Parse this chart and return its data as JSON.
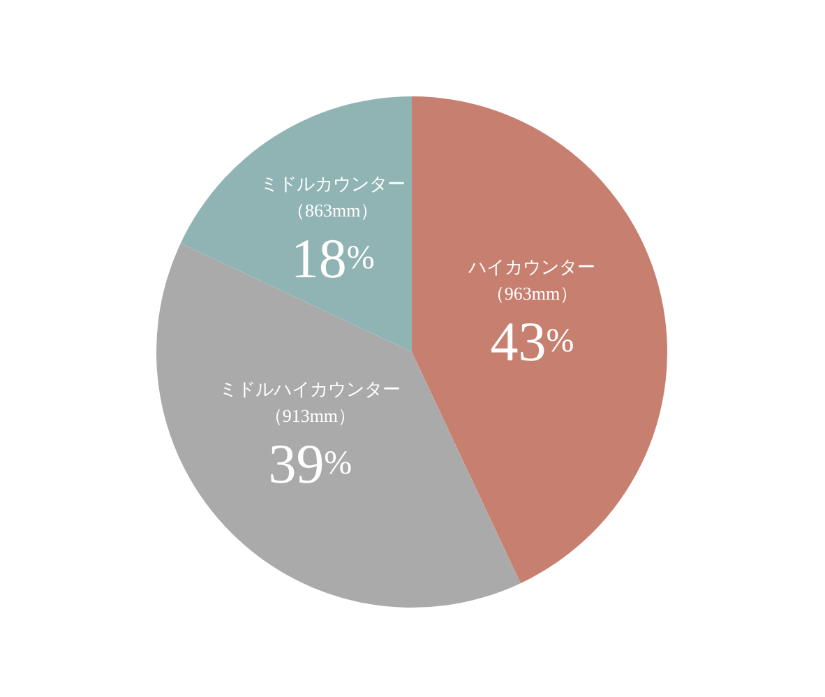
{
  "chart_data": {
    "type": "pie",
    "categories": [
      "ハイカウンター（963mm）",
      "ミドルハイカウンター（913mm）",
      "ミドルカウンター（863mm）"
    ],
    "values": [
      43,
      39,
      18
    ],
    "colors": [
      "#c77f6f",
      "#aaaaaa",
      "#90b4b4"
    ],
    "value_labels": [
      "43%",
      "39%",
      "18%"
    ]
  }
}
